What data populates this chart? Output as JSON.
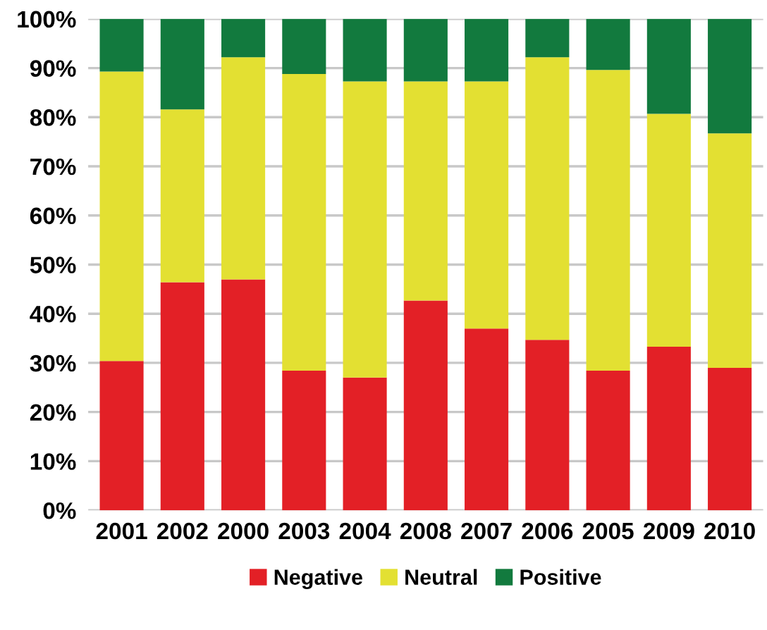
{
  "chart_data": {
    "type": "bar",
    "stacked": true,
    "categories": [
      "2001",
      "2002",
      "2000",
      "2003",
      "2004",
      "2008",
      "2007",
      "2006",
      "2005",
      "2009",
      "2010"
    ],
    "series": [
      {
        "name": "Negative",
        "color": "#e32026",
        "values": [
          30.4,
          46.4,
          47.0,
          28.4,
          27.0,
          42.7,
          37.0,
          34.7,
          28.4,
          33.3,
          29.0
        ]
      },
      {
        "name": "Neutral",
        "color": "#e3e032",
        "values": [
          58.9,
          35.2,
          45.2,
          60.4,
          60.3,
          44.6,
          50.3,
          57.5,
          61.2,
          47.4,
          47.7
        ]
      },
      {
        "name": "Positive",
        "color": "#127a3e",
        "values": [
          10.7,
          18.4,
          7.8,
          11.2,
          12.7,
          12.7,
          12.7,
          7.8,
          10.4,
          19.3,
          23.3
        ]
      }
    ],
    "ylim": [
      0,
      100
    ],
    "yticks": [
      {
        "value": 0,
        "label": "0%"
      },
      {
        "value": 10,
        "label": "10%"
      },
      {
        "value": 20,
        "label": "20%"
      },
      {
        "value": 30,
        "label": "30%"
      },
      {
        "value": 40,
        "label": "40%"
      },
      {
        "value": 50,
        "label": "50%"
      },
      {
        "value": 60,
        "label": "60%"
      },
      {
        "value": 70,
        "label": "70%"
      },
      {
        "value": 80,
        "label": "80%"
      },
      {
        "value": 90,
        "label": "90%"
      },
      {
        "value": 100,
        "label": "100%"
      }
    ],
    "grid": "y",
    "legend": "bottom"
  }
}
